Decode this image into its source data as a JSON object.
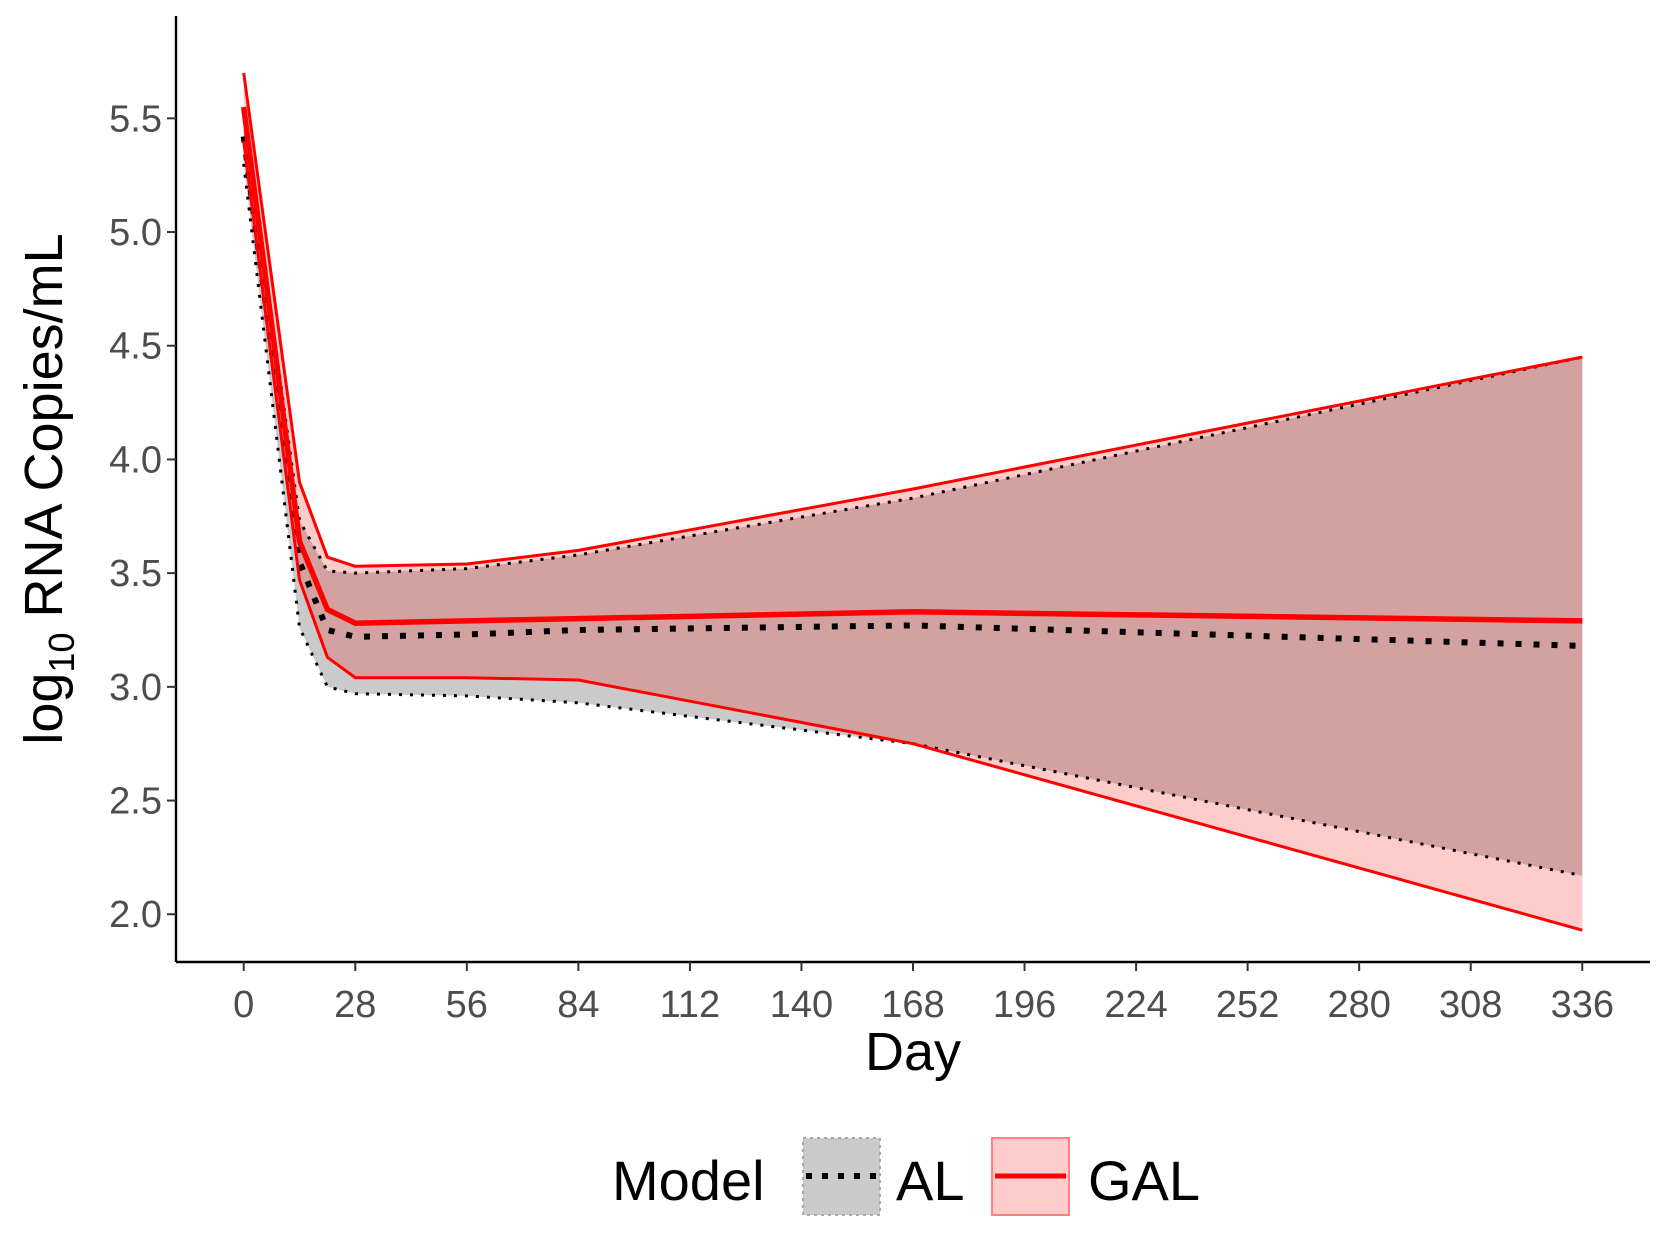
{
  "chart_data": {
    "type": "line",
    "xlabel": "Day",
    "ylabel": {
      "base": "log",
      "subscript": "10",
      "rest": " RNA Copies/mL"
    },
    "xlim": [
      -17,
      353
    ],
    "ylim": [
      1.79,
      5.95
    ],
    "x_ticks": [
      0,
      28,
      56,
      84,
      112,
      140,
      168,
      196,
      224,
      252,
      280,
      308,
      336
    ],
    "x_tick_labels": [
      "0",
      "28",
      "56",
      "84",
      "112",
      "140",
      "168",
      "196",
      "224",
      "252",
      "280",
      "308",
      "336"
    ],
    "y_ticks": [
      2.0,
      2.5,
      3.0,
      3.5,
      4.0,
      4.5,
      5.0,
      5.5
    ],
    "y_tick_labels": [
      "2.0",
      "2.5",
      "3.0",
      "3.5",
      "4.0",
      "4.5",
      "5.0",
      "5.5"
    ],
    "grid": false,
    "legend": {
      "title": "Model",
      "position": "bottom"
    },
    "series": [
      {
        "name": "AL",
        "style": "dotted",
        "line_color": "#000000",
        "fill_color": "#bdbdbd",
        "x": [
          0,
          14,
          21,
          28,
          56,
          84,
          168,
          336
        ],
        "median": [
          5.42,
          3.55,
          3.25,
          3.22,
          3.23,
          3.25,
          3.27,
          3.18
        ],
        "lower": [
          5.3,
          3.26,
          3.0,
          2.97,
          2.96,
          2.93,
          2.75,
          2.17
        ],
        "upper": [
          5.52,
          3.73,
          3.51,
          3.5,
          3.52,
          3.58,
          3.83,
          4.45
        ]
      },
      {
        "name": "GAL",
        "style": "solid",
        "line_color": "#ff0000",
        "fill_color": "#ff0000",
        "x": [
          0,
          14,
          21,
          28,
          56,
          84,
          168,
          336
        ],
        "median": [
          5.55,
          3.64,
          3.34,
          3.28,
          3.29,
          3.3,
          3.33,
          3.29
        ],
        "lower": [
          5.4,
          3.47,
          3.13,
          3.04,
          3.04,
          3.03,
          2.75,
          1.93
        ],
        "upper": [
          5.7,
          3.9,
          3.57,
          3.53,
          3.54,
          3.6,
          3.87,
          4.45
        ]
      }
    ]
  }
}
